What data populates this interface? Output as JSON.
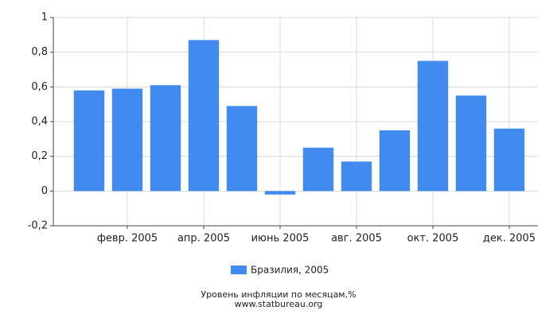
{
  "chart_data": {
    "type": "bar",
    "title": "Уровень инфляции по месяцам,%",
    "subtitle": "www.statbureau.org",
    "categories": [
      null,
      "февр. 2005",
      null,
      "апр. 2005",
      null,
      "июнь 2005",
      null,
      "авг. 2005",
      null,
      "окт. 2005",
      null,
      "дек. 2005"
    ],
    "series": [
      {
        "name": "Бразилия, 2005",
        "color": "#428bee",
        "values": [
          0.58,
          0.59,
          0.61,
          0.87,
          0.49,
          -0.02,
          0.25,
          0.17,
          0.35,
          0.75,
          0.55,
          0.36
        ]
      }
    ],
    "ylim": [
      -0.2,
      1
    ],
    "yticks": [
      {
        "value": -0.2,
        "label": "-0,2"
      },
      0,
      {
        "value": 0.2,
        "label": "0,2"
      },
      {
        "value": 0.4,
        "label": "0,4"
      },
      {
        "value": 0.6,
        "label": "0,6"
      },
      {
        "value": 0.8,
        "label": "0,8"
      },
      1
    ],
    "grid": true
  }
}
